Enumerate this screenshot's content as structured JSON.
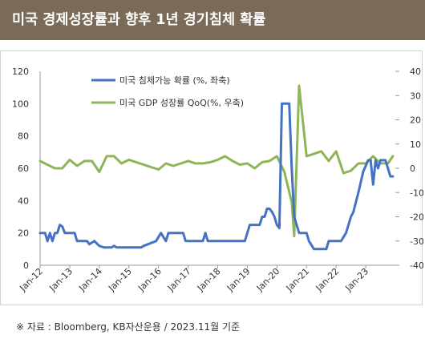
{
  "header": {
    "title": "미국 경제성장률과 향후 1년 경기침체 확률"
  },
  "footer": {
    "source": "※ 자료 : Bloomberg, KB자산운용 / 2023.11월 기준"
  },
  "colors": {
    "header_bg": "#7a6a58",
    "series1": "#4472c4",
    "series2": "#8db656",
    "axis": "#333333"
  },
  "chart_data": {
    "type": "line",
    "x_tick_labels": [
      "Jan-12",
      "Jan-13",
      "Jan-14",
      "Jan-15",
      "Jan-16",
      "Jan-17",
      "Jan-18",
      "Jan-19",
      "Jan-20",
      "Jan-21",
      "Jan-22",
      "Jan-23"
    ],
    "y_left": {
      "min": 0,
      "max": 120,
      "ticks": [
        0,
        20,
        40,
        60,
        80,
        100,
        120
      ]
    },
    "y_right": {
      "min": -40,
      "max": 40,
      "ticks": [
        -40,
        -30,
        -20,
        -10,
        0,
        10,
        20,
        30,
        40
      ]
    },
    "grid": false,
    "legend_position": "top-center",
    "series": [
      {
        "name": "미국 침체가능 확률 (%, 좌축)",
        "axis": "left",
        "color": "#4472c4",
        "points": [
          [
            "2012-01",
            20
          ],
          [
            "2012-03",
            20
          ],
          [
            "2012-04",
            15
          ],
          [
            "2012-05",
            20
          ],
          [
            "2012-06",
            15
          ],
          [
            "2012-07",
            20
          ],
          [
            "2012-08",
            20
          ],
          [
            "2012-09",
            25
          ],
          [
            "2012-10",
            24
          ],
          [
            "2012-11",
            20
          ],
          [
            "2013-03",
            20
          ],
          [
            "2013-04",
            15
          ],
          [
            "2013-08",
            15
          ],
          [
            "2013-09",
            13
          ],
          [
            "2013-11",
            15
          ],
          [
            "2014-01",
            12
          ],
          [
            "2014-03",
            11
          ],
          [
            "2014-06",
            11
          ],
          [
            "2014-07",
            12
          ],
          [
            "2014-08",
            11
          ],
          [
            "2014-12",
            11
          ],
          [
            "2015-06",
            11
          ],
          [
            "2015-07",
            12
          ],
          [
            "2015-12",
            15
          ],
          [
            "2016-02",
            20
          ],
          [
            "2016-04",
            15
          ],
          [
            "2016-05",
            20
          ],
          [
            "2016-11",
            20
          ],
          [
            "2016-12",
            15
          ],
          [
            "2017-07",
            15
          ],
          [
            "2017-08",
            20
          ],
          [
            "2017-09",
            15
          ],
          [
            "2018-12",
            15
          ],
          [
            "2019-01",
            20
          ],
          [
            "2019-02",
            25
          ],
          [
            "2019-06",
            25
          ],
          [
            "2019-07",
            30
          ],
          [
            "2019-08",
            30
          ],
          [
            "2019-09",
            35
          ],
          [
            "2019-10",
            35
          ],
          [
            "2019-11",
            33
          ],
          [
            "2019-12",
            30
          ],
          [
            "2020-01",
            25
          ],
          [
            "2020-02",
            23
          ],
          [
            "2020-03",
            100
          ],
          [
            "2020-06",
            100
          ],
          [
            "2020-07",
            60
          ],
          [
            "2020-08",
            30
          ],
          [
            "2020-10",
            20
          ],
          [
            "2021-01",
            20
          ],
          [
            "2021-02",
            15
          ],
          [
            "2021-04",
            10
          ],
          [
            "2021-09",
            10
          ],
          [
            "2021-10",
            15
          ],
          [
            "2022-03",
            15
          ],
          [
            "2022-05",
            20
          ],
          [
            "2022-07",
            30
          ],
          [
            "2022-08",
            33
          ],
          [
            "2022-10",
            45
          ],
          [
            "2022-12",
            58
          ],
          [
            "2023-02",
            65
          ],
          [
            "2023-03",
            65
          ],
          [
            "2023-04",
            50
          ],
          [
            "2023-05",
            65
          ],
          [
            "2023-06",
            60
          ],
          [
            "2023-07",
            65
          ],
          [
            "2023-08",
            65
          ],
          [
            "2023-09",
            65
          ],
          [
            "2023-10",
            60
          ],
          [
            "2023-11",
            55
          ],
          [
            "2023-12",
            55
          ]
        ]
      },
      {
        "name": "미국 GDP 성장률 QoQ(%, 우축)",
        "axis": "right",
        "color": "#8db656",
        "points": [
          [
            "2012-01",
            3
          ],
          [
            "2012-04",
            1.5
          ],
          [
            "2012-07",
            0
          ],
          [
            "2012-10",
            0
          ],
          [
            "2013-01",
            3.5
          ],
          [
            "2013-04",
            1
          ],
          [
            "2013-07",
            3
          ],
          [
            "2013-10",
            3
          ],
          [
            "2014-01",
            -1.5
          ],
          [
            "2014-04",
            5
          ],
          [
            "2014-07",
            5
          ],
          [
            "2014-10",
            2
          ],
          [
            "2015-01",
            3.5
          ],
          [
            "2015-04",
            2.5
          ],
          [
            "2015-07",
            1.5
          ],
          [
            "2015-10",
            0.5
          ],
          [
            "2016-01",
            -0.5
          ],
          [
            "2016-04",
            2
          ],
          [
            "2016-07",
            1
          ],
          [
            "2016-10",
            2
          ],
          [
            "2017-01",
            3
          ],
          [
            "2017-04",
            2
          ],
          [
            "2017-07",
            2
          ],
          [
            "2017-10",
            2.5
          ],
          [
            "2018-01",
            3.5
          ],
          [
            "2018-04",
            5
          ],
          [
            "2018-07",
            3
          ],
          [
            "2018-10",
            1.5
          ],
          [
            "2019-01",
            2
          ],
          [
            "2019-04",
            0
          ],
          [
            "2019-07",
            2.5
          ],
          [
            "2019-10",
            3
          ],
          [
            "2020-01",
            5
          ],
          [
            "2020-04",
            -1.5
          ],
          [
            "2020-07",
            -14
          ],
          [
            "2020-08",
            -28
          ],
          [
            "2020-10",
            34
          ],
          [
            "2021-01",
            5
          ],
          [
            "2021-04",
            6
          ],
          [
            "2021-07",
            7
          ],
          [
            "2021-10",
            3
          ],
          [
            "2022-01",
            7
          ],
          [
            "2022-04",
            -2
          ],
          [
            "2022-07",
            -1
          ],
          [
            "2022-10",
            2
          ],
          [
            "2023-01",
            2
          ],
          [
            "2023-04",
            5
          ],
          [
            "2023-07",
            2
          ],
          [
            "2023-10",
            2
          ],
          [
            "2023-12",
            5
          ]
        ]
      }
    ]
  }
}
